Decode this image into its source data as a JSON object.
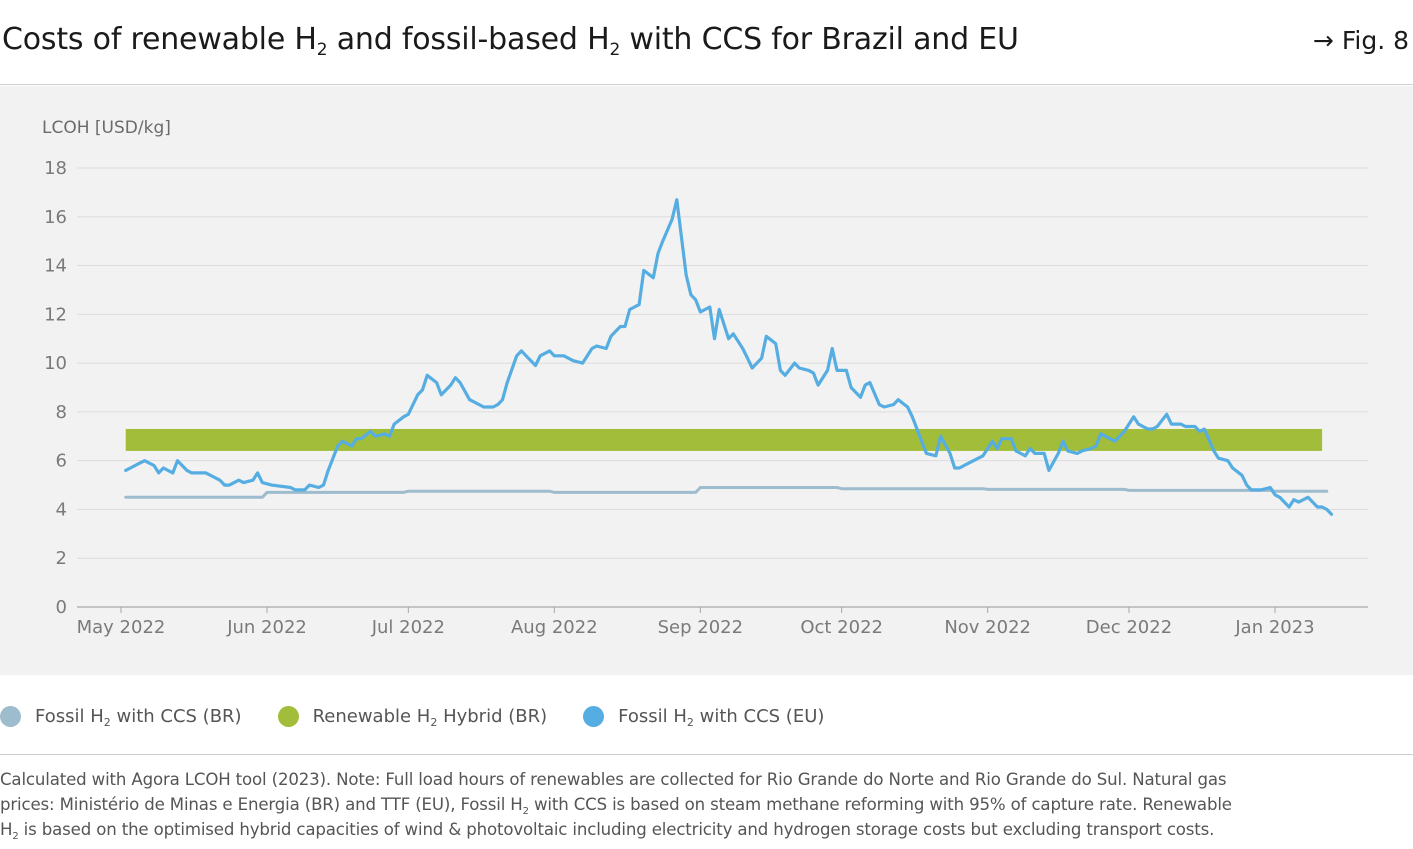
{
  "header": {
    "title_parts": [
      "Costs of renewable H",
      "2",
      " and fossil-based H",
      "2",
      " with CCS for Brazil and EU"
    ],
    "fig_ref": "→ Fig. 8"
  },
  "legend": {
    "items": [
      {
        "pre": "Fossil H",
        "sub": "2",
        "post": " with CCS (BR)",
        "color": "#9dbccd"
      },
      {
        "pre": "Renewable H",
        "sub": "2",
        "post": " Hybrid (BR)",
        "color": "#a1bd39"
      },
      {
        "pre": "Fossil H",
        "sub": "2",
        "post": " with CCS (EU)",
        "color": "#56ade1"
      }
    ]
  },
  "note": {
    "line1": "Calculated with Agora LCOH tool (2023). Note: Full load hours of renewables are collected for Rio Grande do Norte and Rio Grande do Sul. Natural gas",
    "line2_pre": "prices: Ministério de Minas e Energia (BR) and TTF (EU), Fossil H",
    "line2_sub": "2",
    "line2_post": " with CCS is based on steam methane reforming with 95% of capture rate. Renewable",
    "line3_pre": "H",
    "line3_sub": "2",
    "line3_post": " is based on the optimised hybrid capacities of wind & photovoltaic including electricity and hydrogen storage costs but excluding transport costs."
  },
  "chart_data": {
    "type": "line",
    "ylabel": "LCOH [USD/kg]",
    "ylim": [
      0,
      18
    ],
    "yticks": [
      0,
      2,
      4,
      6,
      8,
      10,
      12,
      14,
      16,
      18
    ],
    "x_ticks": [
      "2022-05-01",
      "2022-06-01",
      "2022-07-01",
      "2022-08-01",
      "2022-09-01",
      "2022-10-01",
      "2022-11-01",
      "2022-12-01",
      "2023-01-01"
    ],
    "x_tick_labels": [
      "May 2022",
      "Jun 2022",
      "Jul 2022",
      "Aug 2022",
      "Sep 2022",
      "Oct 2022",
      "Nov 2022",
      "Dec 2022",
      "Jan 2023"
    ],
    "xlim": [
      "2022-05-01",
      "2023-01-31"
    ],
    "grid": "horizontal",
    "bands": [
      {
        "name": "Renewable H2 Hybrid (BR)",
        "x_start": "2022-05-02",
        "x_end": "2023-01-11",
        "y_low": 6.4,
        "y_high": 7.3,
        "color": "#a1bd39"
      }
    ],
    "series": [
      {
        "name": "Fossil H2 with CCS (BR)",
        "color": "#9dbccd",
        "points": [
          [
            "2022-05-02",
            4.5
          ],
          [
            "2022-05-31",
            4.5
          ],
          [
            "2022-06-01",
            4.7
          ],
          [
            "2022-06-30",
            4.7
          ],
          [
            "2022-07-01",
            4.75
          ],
          [
            "2022-07-31",
            4.75
          ],
          [
            "2022-08-01",
            4.7
          ],
          [
            "2022-08-31",
            4.7
          ],
          [
            "2022-09-01",
            4.9
          ],
          [
            "2022-09-30",
            4.9
          ],
          [
            "2022-10-01",
            4.85
          ],
          [
            "2022-10-31",
            4.85
          ],
          [
            "2022-11-01",
            4.82
          ],
          [
            "2022-11-30",
            4.82
          ],
          [
            "2022-12-01",
            4.78
          ],
          [
            "2022-12-31",
            4.78
          ],
          [
            "2023-01-01",
            4.75
          ],
          [
            "2023-01-12",
            4.75
          ]
        ]
      },
      {
        "name": "Fossil H2 with CCS (EU)",
        "color": "#56ade1",
        "points": [
          [
            "2022-05-02",
            5.6
          ],
          [
            "2022-05-03",
            5.7
          ],
          [
            "2022-05-05",
            5.9
          ],
          [
            "2022-05-06",
            6.0
          ],
          [
            "2022-05-08",
            5.8
          ],
          [
            "2022-05-09",
            5.5
          ],
          [
            "2022-05-10",
            5.7
          ],
          [
            "2022-05-12",
            5.5
          ],
          [
            "2022-05-13",
            6.0
          ],
          [
            "2022-05-15",
            5.6
          ],
          [
            "2022-05-16",
            5.5
          ],
          [
            "2022-05-17",
            5.5
          ],
          [
            "2022-05-19",
            5.5
          ],
          [
            "2022-05-20",
            5.4
          ],
          [
            "2022-05-22",
            5.2
          ],
          [
            "2022-05-23",
            5.0
          ],
          [
            "2022-05-24",
            5.0
          ],
          [
            "2022-05-26",
            5.2
          ],
          [
            "2022-05-27",
            5.1
          ],
          [
            "2022-05-29",
            5.2
          ],
          [
            "2022-05-30",
            5.5
          ],
          [
            "2022-05-31",
            5.1
          ],
          [
            "2022-06-02",
            5.0
          ],
          [
            "2022-06-06",
            4.9
          ],
          [
            "2022-06-07",
            4.8
          ],
          [
            "2022-06-09",
            4.8
          ],
          [
            "2022-06-10",
            5.0
          ],
          [
            "2022-06-12",
            4.9
          ],
          [
            "2022-06-13",
            5.0
          ],
          [
            "2022-06-14",
            5.6
          ],
          [
            "2022-06-16",
            6.6
          ],
          [
            "2022-06-17",
            6.8
          ],
          [
            "2022-06-19",
            6.6
          ],
          [
            "2022-06-20",
            6.9
          ],
          [
            "2022-06-21",
            6.9
          ],
          [
            "2022-06-23",
            7.2
          ],
          [
            "2022-06-24",
            7.0
          ],
          [
            "2022-06-26",
            7.1
          ],
          [
            "2022-06-27",
            7.0
          ],
          [
            "2022-06-28",
            7.5
          ],
          [
            "2022-06-30",
            7.8
          ],
          [
            "2022-07-01",
            7.9
          ],
          [
            "2022-07-03",
            8.7
          ],
          [
            "2022-07-04",
            8.9
          ],
          [
            "2022-07-05",
            9.5
          ],
          [
            "2022-07-07",
            9.2
          ],
          [
            "2022-07-08",
            8.7
          ],
          [
            "2022-07-10",
            9.1
          ],
          [
            "2022-07-11",
            9.4
          ],
          [
            "2022-07-12",
            9.2
          ],
          [
            "2022-07-14",
            8.5
          ],
          [
            "2022-07-15",
            8.4
          ],
          [
            "2022-07-17",
            8.2
          ],
          [
            "2022-07-19",
            8.2
          ],
          [
            "2022-07-20",
            8.3
          ],
          [
            "2022-07-21",
            8.5
          ],
          [
            "2022-07-22",
            9.2
          ],
          [
            "2022-07-24",
            10.3
          ],
          [
            "2022-07-25",
            10.5
          ],
          [
            "2022-07-26",
            10.3
          ],
          [
            "2022-07-28",
            9.9
          ],
          [
            "2022-07-29",
            10.3
          ],
          [
            "2022-07-31",
            10.5
          ],
          [
            "2022-08-01",
            10.3
          ],
          [
            "2022-08-03",
            10.3
          ],
          [
            "2022-08-05",
            10.1
          ],
          [
            "2022-08-07",
            10.0
          ],
          [
            "2022-08-09",
            10.6
          ],
          [
            "2022-08-10",
            10.7
          ],
          [
            "2022-08-12",
            10.6
          ],
          [
            "2022-08-13",
            11.1
          ],
          [
            "2022-08-15",
            11.5
          ],
          [
            "2022-08-16",
            11.5
          ],
          [
            "2022-08-17",
            12.2
          ],
          [
            "2022-08-19",
            12.4
          ],
          [
            "2022-08-20",
            13.8
          ],
          [
            "2022-08-22",
            13.5
          ],
          [
            "2022-08-23",
            14.5
          ],
          [
            "2022-08-24",
            15.0
          ],
          [
            "2022-08-26",
            15.9
          ],
          [
            "2022-08-27",
            16.7
          ],
          [
            "2022-08-29",
            13.6
          ],
          [
            "2022-08-30",
            12.8
          ],
          [
            "2022-08-31",
            12.6
          ],
          [
            "2022-09-01",
            12.1
          ],
          [
            "2022-09-03",
            12.3
          ],
          [
            "2022-09-04",
            11.0
          ],
          [
            "2022-09-05",
            12.2
          ],
          [
            "2022-09-07",
            11.0
          ],
          [
            "2022-09-08",
            11.2
          ],
          [
            "2022-09-10",
            10.6
          ],
          [
            "2022-09-11",
            10.2
          ],
          [
            "2022-09-12",
            9.8
          ],
          [
            "2022-09-14",
            10.2
          ],
          [
            "2022-09-15",
            11.1
          ],
          [
            "2022-09-17",
            10.8
          ],
          [
            "2022-09-18",
            9.7
          ],
          [
            "2022-09-19",
            9.5
          ],
          [
            "2022-09-21",
            10.0
          ],
          [
            "2022-09-22",
            9.8
          ],
          [
            "2022-09-24",
            9.7
          ],
          [
            "2022-09-25",
            9.6
          ],
          [
            "2022-09-26",
            9.1
          ],
          [
            "2022-09-28",
            9.7
          ],
          [
            "2022-09-29",
            10.6
          ],
          [
            "2022-09-30",
            9.7
          ],
          [
            "2022-10-02",
            9.7
          ],
          [
            "2022-10-03",
            9.0
          ],
          [
            "2022-10-05",
            8.6
          ],
          [
            "2022-10-06",
            9.1
          ],
          [
            "2022-10-07",
            9.2
          ],
          [
            "2022-10-09",
            8.3
          ],
          [
            "2022-10-10",
            8.2
          ],
          [
            "2022-10-12",
            8.3
          ],
          [
            "2022-10-13",
            8.5
          ],
          [
            "2022-10-15",
            8.2
          ],
          [
            "2022-10-16",
            7.8
          ],
          [
            "2022-10-17",
            7.3
          ],
          [
            "2022-10-19",
            6.3
          ],
          [
            "2022-10-21",
            6.2
          ],
          [
            "2022-10-22",
            7.0
          ],
          [
            "2022-10-24",
            6.3
          ],
          [
            "2022-10-25",
            5.7
          ],
          [
            "2022-10-26",
            5.7
          ],
          [
            "2022-10-28",
            5.9
          ],
          [
            "2022-10-30",
            6.1
          ],
          [
            "2022-10-31",
            6.2
          ],
          [
            "2022-11-02",
            6.8
          ],
          [
            "2022-11-03",
            6.5
          ],
          [
            "2022-11-04",
            6.9
          ],
          [
            "2022-11-06",
            6.9
          ],
          [
            "2022-11-07",
            6.4
          ],
          [
            "2022-11-09",
            6.2
          ],
          [
            "2022-11-10",
            6.5
          ],
          [
            "2022-11-11",
            6.3
          ],
          [
            "2022-11-13",
            6.3
          ],
          [
            "2022-11-14",
            5.6
          ],
          [
            "2022-11-16",
            6.3
          ],
          [
            "2022-11-17",
            6.8
          ],
          [
            "2022-11-18",
            6.4
          ],
          [
            "2022-11-20",
            6.3
          ],
          [
            "2022-11-21",
            6.4
          ],
          [
            "2022-11-23",
            6.5
          ],
          [
            "2022-11-24",
            6.6
          ],
          [
            "2022-11-25",
            7.1
          ],
          [
            "2022-11-27",
            6.9
          ],
          [
            "2022-11-28",
            6.8
          ],
          [
            "2022-11-30",
            7.2
          ],
          [
            "2022-12-02",
            7.8
          ],
          [
            "2022-12-03",
            7.5
          ],
          [
            "2022-12-05",
            7.3
          ],
          [
            "2022-12-06",
            7.3
          ],
          [
            "2022-12-07",
            7.4
          ],
          [
            "2022-12-09",
            7.9
          ],
          [
            "2022-12-10",
            7.5
          ],
          [
            "2022-12-12",
            7.5
          ],
          [
            "2022-12-13",
            7.4
          ],
          [
            "2022-12-15",
            7.4
          ],
          [
            "2022-12-16",
            7.2
          ],
          [
            "2022-12-17",
            7.3
          ],
          [
            "2022-12-19",
            6.4
          ],
          [
            "2022-12-20",
            6.1
          ],
          [
            "2022-12-22",
            6.0
          ],
          [
            "2022-12-23",
            5.7
          ],
          [
            "2022-12-25",
            5.4
          ],
          [
            "2022-12-26",
            5.0
          ],
          [
            "2022-12-27",
            4.8
          ],
          [
            "2022-12-29",
            4.8
          ],
          [
            "2022-12-31",
            4.9
          ],
          [
            "2023-01-01",
            4.6
          ],
          [
            "2023-01-02",
            4.5
          ],
          [
            "2023-01-04",
            4.1
          ],
          [
            "2023-01-05",
            4.4
          ],
          [
            "2023-01-06",
            4.3
          ],
          [
            "2023-01-08",
            4.5
          ],
          [
            "2023-01-09",
            4.3
          ],
          [
            "2023-01-10",
            4.1
          ],
          [
            "2023-01-11",
            4.1
          ],
          [
            "2023-01-12",
            4.0
          ],
          [
            "2023-01-13",
            3.8
          ]
        ]
      }
    ]
  }
}
